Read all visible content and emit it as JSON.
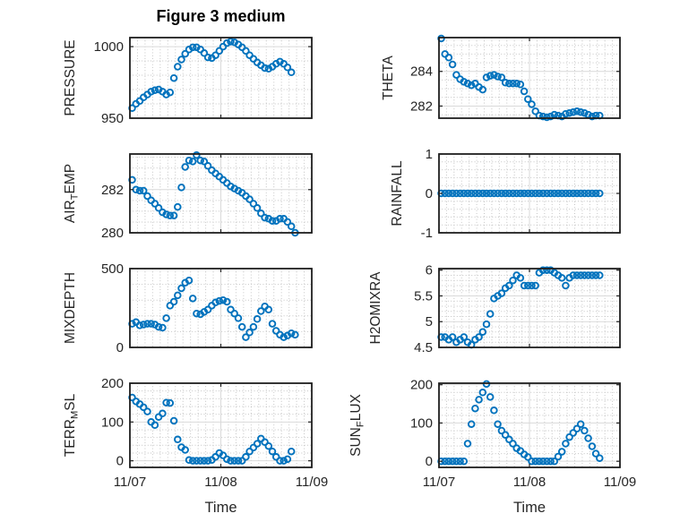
{
  "figure": {
    "title": "Figure 3 medium",
    "xlabel": "Time",
    "background": "#ffffff",
    "marker_color": "#0072BD",
    "axis_color": "#1f1f1f",
    "tick_label_color": "#262626",
    "grid_major_color": "#d9d9d9",
    "grid_minor_color": "#bfbfbf",
    "xlim_hours": [
      0,
      48
    ],
    "xminor_step_hours": 2,
    "xticks": [
      {
        "v": 0,
        "label": "11/07"
      },
      {
        "v": 24,
        "label": "11/08"
      },
      {
        "v": 48,
        "label": "11/09"
      }
    ],
    "grid": "major solid + minor dotted",
    "legend": "none"
  },
  "chart_data": [
    {
      "type": "scatter",
      "name": "pressure",
      "ylabel": "PRESSURE",
      "ylabel_parts": [
        {
          "t": "PRESSURE"
        }
      ],
      "ylim": [
        950,
        1006.3
      ],
      "yminor_step": 10,
      "yticks": [
        {
          "v": 950,
          "label": "950"
        },
        {
          "v": 1000,
          "label": "1000"
        }
      ],
      "x_hours_start": 0.6,
      "x_hours_step": 1,
      "values": [
        957,
        960,
        962,
        964.5,
        966.5,
        968.5,
        969.5,
        970,
        968.5,
        966.5,
        968,
        978,
        986,
        991,
        995,
        998,
        999.5,
        999.5,
        998,
        995.5,
        992.5,
        992,
        994,
        997,
        1000,
        1002.5,
        1003.5,
        1003,
        1001.5,
        999.5,
        997,
        994,
        991.5,
        989,
        987,
        985,
        984.5,
        986,
        988,
        989.5,
        988,
        985.5,
        982
      ]
    },
    {
      "type": "scatter",
      "name": "theta",
      "ylabel": "THETA",
      "ylabel_parts": [
        {
          "t": "THETA"
        }
      ],
      "ylim": [
        281.3,
        285.95
      ],
      "yminor_step": 0.5,
      "yticks": [
        {
          "v": 282,
          "label": "282"
        },
        {
          "v": 284,
          "label": "284"
        }
      ],
      "x_hours_start": 0.6,
      "x_hours_step": 1,
      "values": [
        285.9,
        285.0,
        284.8,
        284.4,
        283.8,
        283.55,
        283.4,
        283.3,
        283.2,
        283.3,
        283.1,
        282.95,
        283.65,
        283.75,
        283.8,
        283.7,
        283.65,
        283.35,
        283.3,
        283.3,
        283.3,
        283.25,
        282.85,
        282.4,
        282.1,
        281.7,
        281.45,
        281.4,
        281.35,
        281.4,
        281.5,
        281.45,
        281.4,
        281.55,
        281.6,
        281.65,
        281.7,
        281.65,
        281.6,
        281.5,
        281.4,
        281.45,
        281.45
      ]
    },
    {
      "type": "scatter",
      "name": "air-temp",
      "ylabel": "AIR_TEMP",
      "ylabel_parts": [
        {
          "t": "AIR"
        },
        {
          "t": "T",
          "sub": true
        },
        {
          "t": "EMP"
        }
      ],
      "ylim": [
        280,
        283.65
      ],
      "yminor_step": 0.5,
      "yticks": [
        {
          "v": 280,
          "label": "280"
        },
        {
          "v": 282,
          "label": "282"
        }
      ],
      "x_hours_start": 0.6,
      "x_hours_step": 1,
      "values": [
        282.45,
        282.0,
        281.95,
        281.95,
        281.7,
        281.5,
        281.35,
        281.15,
        280.95,
        280.85,
        280.8,
        280.8,
        281.2,
        282.1,
        283.05,
        283.35,
        283.3,
        283.6,
        283.35,
        283.3,
        283.1,
        282.9,
        282.75,
        282.6,
        282.45,
        282.3,
        282.15,
        282.05,
        281.95,
        281.85,
        281.7,
        281.55,
        281.35,
        281.15,
        280.9,
        280.7,
        280.65,
        280.55,
        280.55,
        280.65,
        280.65,
        280.5,
        280.3,
        280.0
      ]
    },
    {
      "type": "scatter",
      "name": "rainfall",
      "ylabel": "RAINFALL",
      "ylabel_parts": [
        {
          "t": "RAINFALL"
        }
      ],
      "ylim": [
        -1,
        1
      ],
      "yminor_step": 0.2,
      "yticks": [
        {
          "v": -1,
          "label": "-1"
        },
        {
          "v": 0,
          "label": "0"
        },
        {
          "v": 1,
          "label": "1"
        }
      ],
      "x_hours_start": 0.6,
      "x_hours_step": 1,
      "values": [
        0,
        0,
        0,
        0,
        0,
        0,
        0,
        0,
        0,
        0,
        0,
        0,
        0,
        0,
        0,
        0,
        0,
        0,
        0,
        0,
        0,
        0,
        0,
        0,
        0,
        0,
        0,
        0,
        0,
        0,
        0,
        0,
        0,
        0,
        0,
        0,
        0,
        0,
        0,
        0,
        0,
        0,
        0
      ]
    },
    {
      "type": "scatter",
      "name": "mixdepth",
      "ylabel": "MIXDEPTH",
      "ylabel_parts": [
        {
          "t": "MIXDEPTH"
        }
      ],
      "ylim": [
        0,
        500
      ],
      "yminor_step": 100,
      "yticks": [
        {
          "v": 0,
          "label": "0"
        },
        {
          "v": 500,
          "label": "500"
        }
      ],
      "x_hours_start": 0.6,
      "x_hours_step": 1,
      "values": [
        150,
        160,
        140,
        145,
        150,
        150,
        145,
        130,
        125,
        185,
        265,
        290,
        330,
        375,
        410,
        425,
        310,
        215,
        210,
        225,
        240,
        265,
        285,
        295,
        300,
        290,
        240,
        215,
        185,
        130,
        65,
        95,
        130,
        180,
        230,
        260,
        240,
        150,
        105,
        80,
        65,
        75,
        90,
        80
      ]
    },
    {
      "type": "scatter",
      "name": "h2omixra",
      "ylabel": "H2OMIXRA",
      "ylabel_parts": [
        {
          "t": "H2OMIXRA"
        }
      ],
      "ylim": [
        4.5,
        6.03
      ],
      "yminor_step": 0.1,
      "yticks": [
        {
          "v": 4.5,
          "label": "4.5"
        },
        {
          "v": 5,
          "label": "5"
        },
        {
          "v": 5.5,
          "label": "5.5"
        },
        {
          "v": 6,
          "label": "6"
        }
      ],
      "x_hours_start": 0.6,
      "x_hours_step": 1,
      "values": [
        4.7,
        4.7,
        4.65,
        4.7,
        4.6,
        4.65,
        4.7,
        4.6,
        4.55,
        4.65,
        4.7,
        4.8,
        4.95,
        5.15,
        5.45,
        5.5,
        5.55,
        5.65,
        5.7,
        5.8,
        5.9,
        5.85,
        5.7,
        5.7,
        5.7,
        5.7,
        5.95,
        6.0,
        6.0,
        6.0,
        5.95,
        5.9,
        5.85,
        5.7,
        5.85,
        5.9,
        5.9,
        5.9,
        5.9,
        5.9,
        5.9,
        5.9,
        5.9
      ]
    },
    {
      "type": "scatter",
      "name": "terr-msl",
      "ylabel": "TERR_MSL",
      "ylabel_parts": [
        {
          "t": "TERR"
        },
        {
          "t": "M",
          "sub": true
        },
        {
          "t": "SL"
        }
      ],
      "ylim": [
        -17,
        200
      ],
      "yminor_step": 20,
      "yticks": [
        {
          "v": 0,
          "label": "0"
        },
        {
          "v": 100,
          "label": "100"
        },
        {
          "v": 200,
          "label": "200"
        }
      ],
      "x_hours_start": 0.6,
      "x_hours_step": 1,
      "values": [
        163,
        153,
        146,
        138,
        127,
        100,
        92,
        113,
        122,
        150,
        149,
        103,
        55,
        35,
        28,
        2,
        0,
        0,
        0,
        0,
        0,
        2,
        10,
        20,
        14,
        4,
        0,
        0,
        0,
        0,
        10,
        24,
        34,
        44,
        57,
        48,
        38,
        24,
        10,
        0,
        0,
        4,
        24
      ]
    },
    {
      "type": "scatter",
      "name": "sun-flux",
      "ylabel": "SUN_FLUX",
      "ylabel_parts": [
        {
          "t": "SUN"
        },
        {
          "t": "F",
          "sub": true
        },
        {
          "t": "LUX"
        }
      ],
      "ylim": [
        -16,
        204
      ],
      "yminor_step": 20,
      "yticks": [
        {
          "v": 0,
          "label": "0"
        },
        {
          "v": 100,
          "label": "100"
        },
        {
          "v": 200,
          "label": "200"
        }
      ],
      "x_hours_start": 0.6,
      "x_hours_step": 1,
      "values": [
        0,
        0,
        0,
        0,
        0,
        0,
        0,
        46,
        97,
        138,
        161,
        180,
        202,
        168,
        133,
        97,
        80,
        69,
        57,
        46,
        34,
        27,
        18,
        11,
        0,
        0,
        0,
        0,
        0,
        0,
        0,
        12,
        25,
        46,
        63,
        74,
        85,
        97,
        80,
        60,
        39,
        20,
        8
      ]
    }
  ]
}
